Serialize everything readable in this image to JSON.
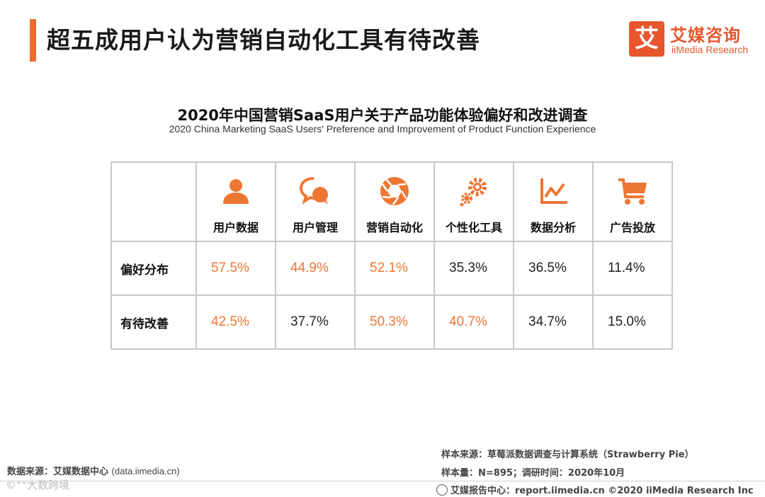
{
  "header": {
    "title": "超五成用户认为营销自动化工具有待改善",
    "logo_mark": "艾",
    "logo_cn": "艾媒咨询",
    "logo_en": "iiMedia Research"
  },
  "chart_data": {
    "type": "table",
    "title": "2020年中国营销SaaS用户关于产品功能体验偏好和改进调查",
    "subtitle": "2020 China Marketing SaaS Users' Preference and Improvement of Product Function Experience",
    "columns": [
      {
        "label": "用户数据",
        "icon": "user-icon"
      },
      {
        "label": "用户管理",
        "icon": "chat-bubbles-icon"
      },
      {
        "label": "营销自动化",
        "icon": "aperture-icon"
      },
      {
        "label": "个性化工具",
        "icon": "gears-icon"
      },
      {
        "label": "数据分析",
        "icon": "line-chart-icon"
      },
      {
        "label": "广告投放",
        "icon": "shopping-cart-icon"
      }
    ],
    "rows": [
      {
        "label": "偏好分布",
        "values": [
          "57.5%",
          "44.9%",
          "52.1%",
          "35.3%",
          "36.5%",
          "11.4%"
        ],
        "highlight": [
          true,
          true,
          true,
          false,
          false,
          false
        ]
      },
      {
        "label": "有待改善",
        "values": [
          "42.5%",
          "37.7%",
          "50.3%",
          "40.7%",
          "34.7%",
          "15.0%"
        ],
        "highlight": [
          true,
          false,
          true,
          true,
          false,
          false
        ]
      }
    ],
    "highlight_color": "#ee7633",
    "icon_color": "#ee7633"
  },
  "footer": {
    "source_left": "数据来源：艾媒数据中心",
    "source_left_url": "(data.iimedia.cn)",
    "watermark": "©°°大数跨境",
    "sample_source": "样本来源：草莓派数据调查与计算系统（Strawberry Pie）",
    "sample_size": "样本量：N=895；调研时间：2020年10月",
    "report_center": "艾媒报告中心：report.iimedia.cn   ©2020  iiMedia Research  Inc"
  }
}
